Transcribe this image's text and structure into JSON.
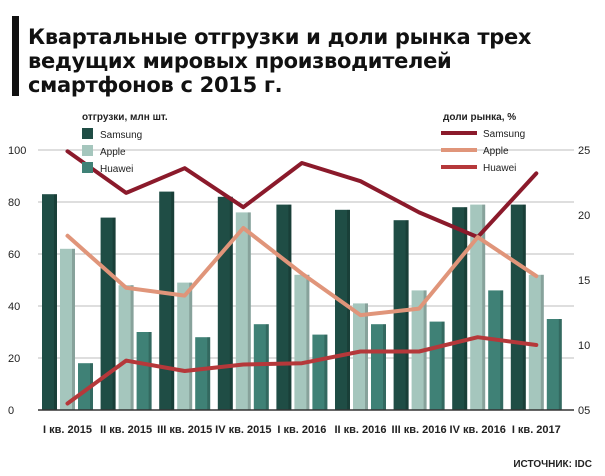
{
  "title": "Квартальные отгрузки и доли рынка трех ведущих мировых производителей смартфонов с 2015 г.",
  "source": "ИСТОЧНИК: IDC",
  "colors": {
    "samsung_bar": "#1f4d45",
    "apple_bar": "#a5c6bd",
    "huawei_bar": "#3f8176",
    "samsung_line": "#8b1a2b",
    "apple_line": "#e0957a",
    "huawei_line": "#b5383a",
    "grid": "#bdbdbd"
  },
  "chart_data": {
    "type": "bar",
    "categories": [
      "I кв. 2015",
      "II кв. 2015",
      "III кв. 2015",
      "IV кв. 2015",
      "I кв. 2016",
      "II кв. 2016",
      "III кв. 2016",
      "IV кв. 2016",
      "I кв. 2017"
    ],
    "bar_legend_title": "отгрузки, млн шт.",
    "line_legend_title": "доли рынка, %",
    "left_axis": {
      "min": 0,
      "max": 100,
      "ticks": [
        "0",
        "20",
        "40",
        "60",
        "80",
        "100"
      ]
    },
    "right_axis": {
      "min": 5,
      "max": 25,
      "ticks": [
        "05",
        "10",
        "15",
        "20",
        "25"
      ]
    },
    "grid": true,
    "series": [
      {
        "name": "Samsung",
        "kind": "bar",
        "axis": "left",
        "values": [
          83,
          74,
          84,
          82,
          79,
          77,
          73,
          78,
          79
        ]
      },
      {
        "name": "Apple",
        "kind": "bar",
        "axis": "left",
        "values": [
          62,
          48,
          49,
          76,
          52,
          41,
          46,
          79,
          52
        ]
      },
      {
        "name": "Huawei",
        "kind": "bar",
        "axis": "left",
        "values": [
          18,
          30,
          28,
          33,
          29,
          33,
          34,
          46,
          35
        ]
      },
      {
        "name": "Samsung",
        "kind": "line",
        "axis": "right",
        "values": [
          24.9,
          21.7,
          23.6,
          20.6,
          24.0,
          22.6,
          20.2,
          18.3,
          23.2
        ]
      },
      {
        "name": "Apple",
        "kind": "line",
        "axis": "right",
        "values": [
          18.4,
          14.4,
          13.8,
          19.0,
          15.5,
          12.3,
          12.8,
          18.3,
          15.3
        ]
      },
      {
        "name": "Huawei",
        "kind": "line",
        "axis": "right",
        "values": [
          5.5,
          8.8,
          8.0,
          8.5,
          8.6,
          9.5,
          9.5,
          10.6,
          10.0
        ]
      }
    ]
  }
}
